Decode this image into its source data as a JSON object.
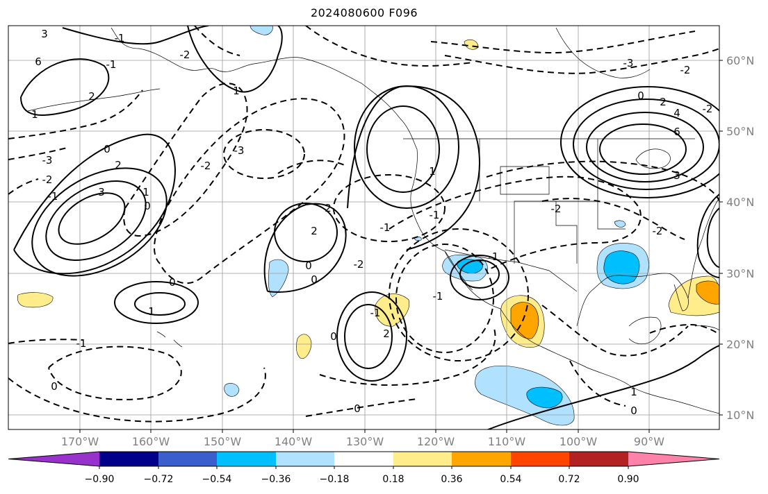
{
  "title": "2024080600 F096",
  "lon_ticks": [
    "170°W",
    "160°W",
    "150°W",
    "140°W",
    "130°W",
    "120°W",
    "110°W",
    "100°W",
    "90°W"
  ],
  "lat_ticks": [
    "60°N",
    "50°N",
    "40°N",
    "30°N",
    "20°N",
    "10°N"
  ],
  "colorbar": {
    "ticks": [
      "−0.90",
      "−0.72",
      "−0.54",
      "−0.36",
      "−0.18",
      "0.18",
      "0.36",
      "0.54",
      "0.72",
      "0.90"
    ],
    "colors": [
      "#9932cc",
      "#00008b",
      "#3a5fcd",
      "#00bfff",
      "#b0e2ff",
      "#ffffff",
      "#ffec8b",
      "#ffa500",
      "#ff4500",
      "#b22222",
      "#ff82ab"
    ]
  },
  "contour_labels": [
    {
      "text": "3"
    },
    {
      "text": "6"
    },
    {
      "text": "2"
    },
    {
      "text": "1"
    },
    {
      "text": "-3"
    },
    {
      "text": "-2"
    },
    {
      "text": "-1"
    },
    {
      "text": "0"
    },
    {
      "text": "3"
    },
    {
      "text": "2"
    },
    {
      "text": "1"
    },
    {
      "text": "0"
    },
    {
      "text": "-2"
    },
    {
      "text": "-3"
    },
    {
      "text": "-2"
    },
    {
      "text": "-1"
    },
    {
      "text": "2"
    },
    {
      "text": "1"
    },
    {
      "text": "2"
    },
    {
      "text": "0"
    },
    {
      "text": "0"
    },
    {
      "text": "-2"
    },
    {
      "text": "-1"
    },
    {
      "text": "1"
    },
    {
      "text": "0"
    },
    {
      "text": "-1"
    },
    {
      "text": "1"
    },
    {
      "text": "-1"
    },
    {
      "text": "2"
    },
    {
      "text": "0"
    },
    {
      "text": "-1"
    },
    {
      "text": "0"
    },
    {
      "text": "0"
    },
    {
      "text": "-2"
    },
    {
      "text": "-1"
    },
    {
      "text": "-1"
    },
    {
      "text": "-3"
    },
    {
      "text": "-2"
    },
    {
      "text": "2"
    },
    {
      "text": "4"
    },
    {
      "text": "6"
    },
    {
      "text": "3"
    },
    {
      "text": "-2"
    },
    {
      "text": "-2"
    },
    {
      "text": "0"
    },
    {
      "text": "1"
    },
    {
      "text": "0"
    },
    {
      "text": "-1"
    }
  ]
}
